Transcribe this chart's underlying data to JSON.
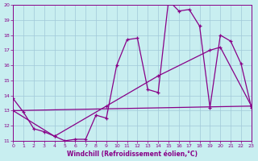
{
  "xlabel": "Windchill (Refroidissement éolien,°C)",
  "bg_color": "#c8eef0",
  "grid_color": "#a0c8d8",
  "line_color": "#880088",
  "xlim": [
    0,
    23
  ],
  "ylim": [
    11,
    20
  ],
  "xticks": [
    0,
    1,
    2,
    3,
    4,
    5,
    6,
    7,
    8,
    9,
    10,
    11,
    12,
    13,
    14,
    15,
    16,
    17,
    18,
    19,
    20,
    21,
    22,
    23
  ],
  "yticks": [
    11,
    12,
    13,
    14,
    15,
    16,
    17,
    18,
    19,
    20
  ],
  "curve1_x": [
    0,
    1,
    2,
    3,
    4,
    5,
    6,
    7,
    8,
    9,
    10,
    11,
    12,
    13,
    14,
    15,
    16,
    17,
    18,
    19,
    20,
    21,
    22,
    23
  ],
  "curve1_y": [
    13.8,
    12.9,
    11.8,
    11.6,
    11.3,
    11.0,
    11.1,
    11.1,
    12.7,
    12.5,
    16.0,
    17.7,
    17.8,
    14.4,
    14.2,
    20.3,
    19.6,
    19.7,
    18.6,
    13.2,
    18.0,
    17.6,
    16.1,
    13.2
  ],
  "curve2_x": [
    0,
    4,
    9,
    14,
    19,
    20,
    23
  ],
  "curve2_y": [
    13.0,
    11.3,
    13.3,
    15.3,
    17.0,
    17.2,
    13.3
  ],
  "curve3_x": [
    0,
    23
  ],
  "curve3_y": [
    13.0,
    13.3
  ],
  "figsize": [
    3.2,
    2.0
  ],
  "dpi": 100
}
